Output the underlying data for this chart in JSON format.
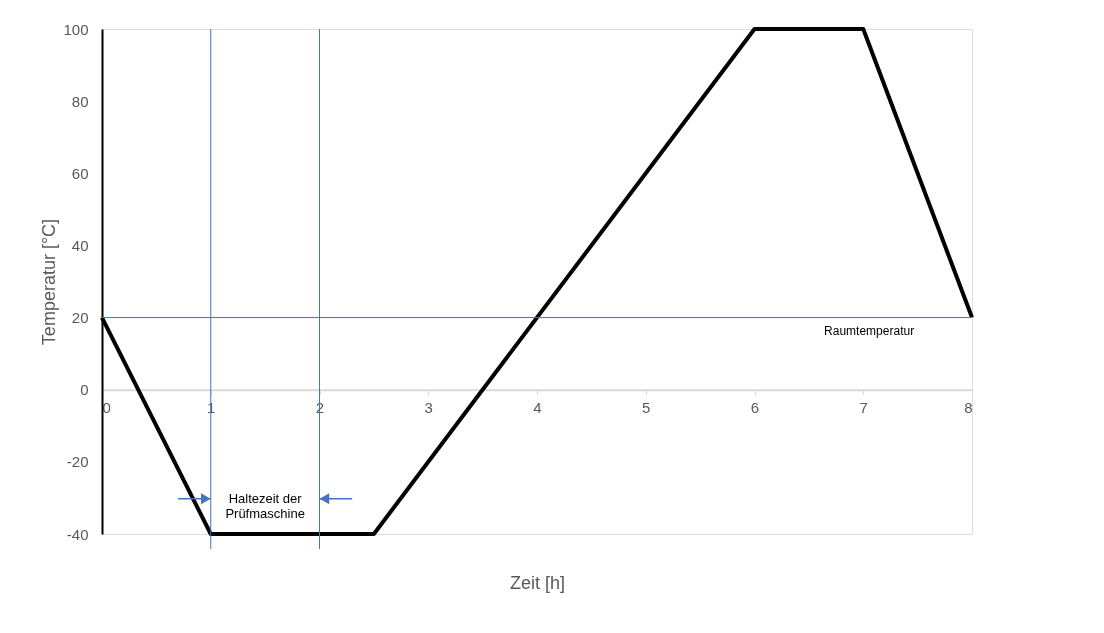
{
  "chart_data": {
    "type": "line",
    "x": [
      0,
      1,
      2.5,
      6,
      7,
      8
    ],
    "series": [
      {
        "color": "#000000",
        "values": [
          20,
          -40,
          -40,
          100,
          100,
          20
        ]
      }
    ],
    "xlabel": "Zeit [h]",
    "ylabel": "Temperatur [°C]",
    "xlim": [
      0,
      8
    ],
    "ylim": [
      -40,
      100
    ],
    "xticks": [
      0,
      1,
      2,
      3,
      4,
      5,
      6,
      7,
      8
    ],
    "yticks": [
      -40,
      -20,
      0,
      20,
      40,
      60,
      80,
      100
    ],
    "grid": false,
    "marker": "none",
    "line_style": "solid",
    "ref_lines": [
      {
        "axis": "y",
        "value": 20,
        "label": "Raumtemperatur",
        "color": "#4472c4"
      },
      {
        "axis": "x",
        "value": 1,
        "label": null,
        "color": "#4472c4"
      },
      {
        "axis": "x",
        "value": 2,
        "label": null,
        "color": "#4472c4"
      }
    ],
    "annotations": [
      "Haltezeit der Prüfmaschine"
    ]
  }
}
